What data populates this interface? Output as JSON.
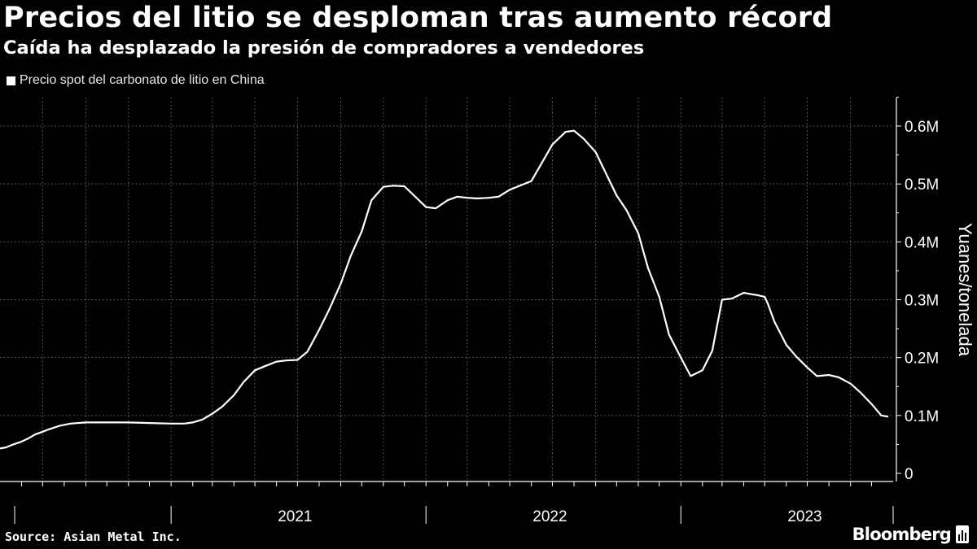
{
  "header": {
    "title": "Precios del litio se desploman tras aumento récord",
    "subtitle": "Caída ha desplazado la presión de compradores a vendedores"
  },
  "legend": {
    "label": "Precio spot del carbonato de litio en China"
  },
  "footer": {
    "source": "Source: Asian Metal Inc.",
    "brand": "Bloomberg",
    "brand_icon": "bloomberg-chart-icon"
  },
  "colors": {
    "background": "#000000",
    "line": "#ffffff",
    "grid": "#6b6b6b",
    "axis": "#ffffff"
  },
  "chart_data": {
    "type": "line",
    "ylabel": "Yuanes/tonelada",
    "ylim": [
      0,
      650000
    ],
    "yaxis_position": "right",
    "yticks": [
      {
        "value": 0,
        "label": "0"
      },
      {
        "value": 100000,
        "label": "0.1M"
      },
      {
        "value": 200000,
        "label": "0.2M"
      },
      {
        "value": 300000,
        "label": "0.3M"
      },
      {
        "value": 400000,
        "label": "0.4M"
      },
      {
        "value": 500000,
        "label": "0.5M"
      },
      {
        "value": 600000,
        "label": "0.6M"
      }
    ],
    "xlim": [
      "2020-05-01",
      "2023-11-01"
    ],
    "xticks": [
      {
        "value": "2021-01-01",
        "label": "2021"
      },
      {
        "value": "2022-01-01",
        "label": "2022"
      },
      {
        "value": "2023-01-01",
        "label": "2023"
      }
    ],
    "grid": true,
    "legend_position": "top-left",
    "series": [
      {
        "name": "Precio spot del carbonato de litio en China",
        "x": [
          "2020-05-01",
          "2020-05-10",
          "2020-05-20",
          "2020-06-01",
          "2020-06-10",
          "2020-06-20",
          "2020-07-01",
          "2020-07-10",
          "2020-07-25",
          "2020-08-10",
          "2020-09-01",
          "2020-10-01",
          "2020-11-01",
          "2020-12-01",
          "2021-01-01",
          "2021-01-20",
          "2021-02-01",
          "2021-02-15",
          "2021-03-01",
          "2021-03-15",
          "2021-04-01",
          "2021-04-15",
          "2021-05-01",
          "2021-05-15",
          "2021-06-01",
          "2021-06-15",
          "2021-07-01",
          "2021-07-15",
          "2021-08-01",
          "2021-08-15",
          "2021-09-01",
          "2021-09-15",
          "2021-10-01",
          "2021-10-15",
          "2021-11-01",
          "2021-11-15",
          "2021-12-01",
          "2021-12-15",
          "2022-01-01",
          "2022-01-15",
          "2022-02-01",
          "2022-02-15",
          "2022-03-01",
          "2022-03-15",
          "2022-04-01",
          "2022-04-15",
          "2022-05-01",
          "2022-06-01",
          "2022-07-01",
          "2022-07-20",
          "2022-08-01",
          "2022-08-15",
          "2022-09-01",
          "2022-09-15",
          "2022-10-01",
          "2022-10-15",
          "2022-11-01",
          "2022-11-15",
          "2022-12-01",
          "2022-12-15",
          "2023-01-01",
          "2023-01-15",
          "2023-02-01",
          "2023-02-15",
          "2023-03-01",
          "2023-03-15",
          "2023-04-01",
          "2023-04-10",
          "2023-04-20",
          "2023-05-01",
          "2023-05-05",
          "2023-05-15",
          "2023-06-01",
          "2023-06-15",
          "2023-07-01",
          "2023-07-15",
          "2023-08-01",
          "2023-08-15",
          "2023-09-01",
          "2023-09-15",
          "2023-10-01",
          "2023-10-15",
          "2023-10-25"
        ],
        "values": [
          43000,
          45000,
          50000,
          55000,
          60000,
          67000,
          72000,
          76000,
          82000,
          86000,
          88000,
          88000,
          88000,
          87000,
          86000,
          86000,
          88000,
          93000,
          103000,
          115000,
          135000,
          158000,
          178000,
          185000,
          193000,
          195000,
          196000,
          210000,
          248000,
          282000,
          328000,
          375000,
          418000,
          472000,
          495000,
          497000,
          496000,
          480000,
          460000,
          458000,
          472000,
          478000,
          476000,
          475000,
          476000,
          478000,
          490000,
          505000,
          568000,
          590000,
          592000,
          578000,
          555000,
          520000,
          480000,
          455000,
          415000,
          355000,
          305000,
          240000,
          200000,
          168000,
          178000,
          212000,
          300000,
          302000,
          312000,
          310000,
          308000,
          305000,
          295000,
          262000,
          222000,
          202000,
          183000,
          168000,
          170000,
          166000,
          155000,
          140000,
          120000,
          100000,
          98000
        ]
      }
    ]
  }
}
